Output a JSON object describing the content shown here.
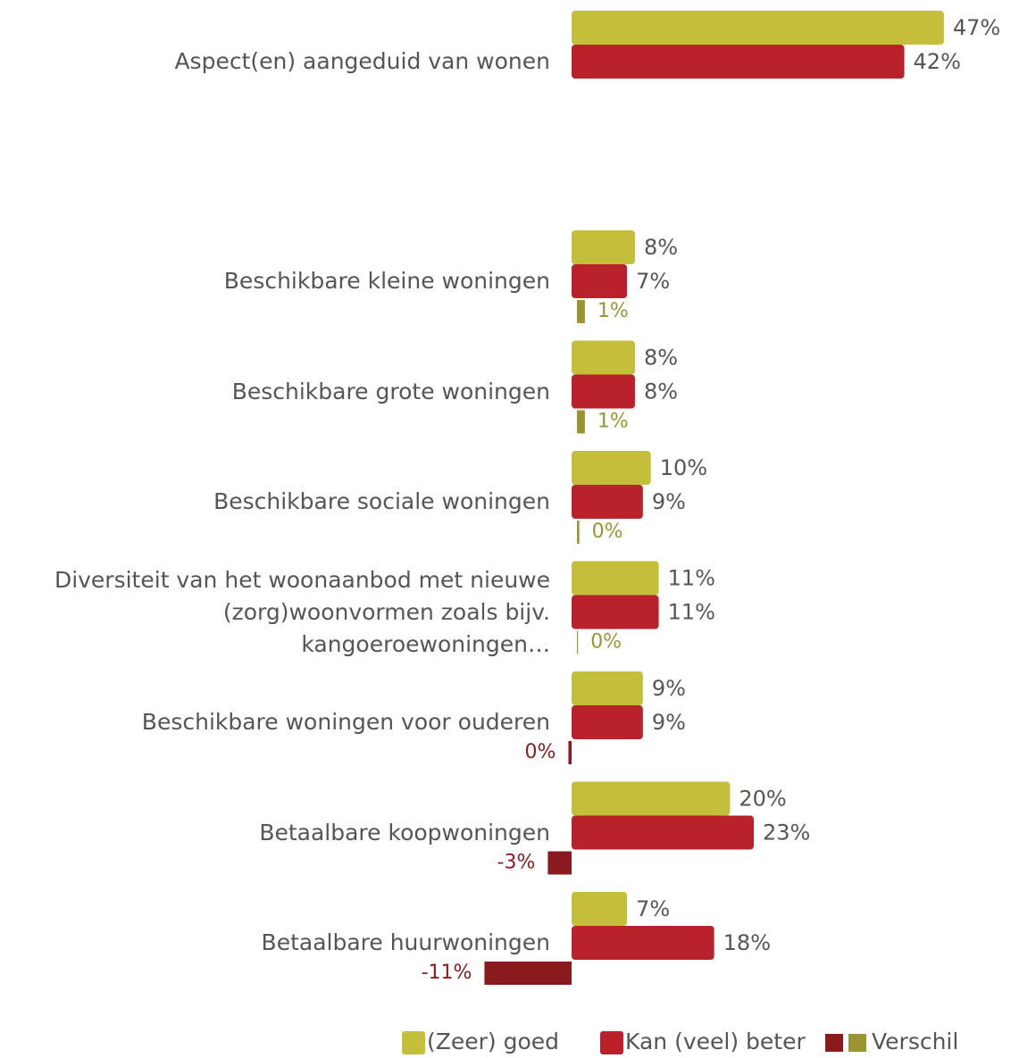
{
  "chart_data": {
    "type": "bar",
    "orientation": "horizontal",
    "categories": [
      "Aspect(en) aangeduid van wonen",
      "Beschikbare kleine woningen",
      "Beschikbare grote woningen",
      "Beschikbare sociale woningen",
      "Diversiteit van het woonaanbod met nieuwe\n(zorg)woonvormen zoals bijv.\nkangoeroewoningen…",
      "Beschikbare woningen voor ouderen",
      "Betaalbare koopwoningen",
      "Betaalbare huurwoningen"
    ],
    "series": [
      {
        "name": "(Zeer) goed",
        "color": "#c4bf3a",
        "values": [
          47,
          8,
          8,
          10,
          11,
          9,
          20,
          7
        ],
        "value_labels": [
          "47%",
          "8%",
          "8%",
          "10%",
          "11%",
          "9%",
          "20%",
          "7%"
        ]
      },
      {
        "name": "Kan (veel) beter",
        "color": "#b9212b",
        "values": [
          42,
          7,
          8,
          9,
          11,
          9,
          23,
          18
        ],
        "value_labels": [
          "42%",
          "7%",
          "8%",
          "9%",
          "11%",
          "9%",
          "23%",
          "18%"
        ]
      },
      {
        "name": "Verschil",
        "color": "#9a9530",
        "negative_color": "#8b1a1f",
        "values": [
          null,
          1,
          1,
          0.3,
          0.1,
          -0.4,
          -3,
          -11
        ],
        "value_labels": [
          null,
          "1%",
          "1%",
          "0%",
          "0%",
          "0%",
          "-3%",
          "-11%"
        ]
      }
    ]
  }
}
